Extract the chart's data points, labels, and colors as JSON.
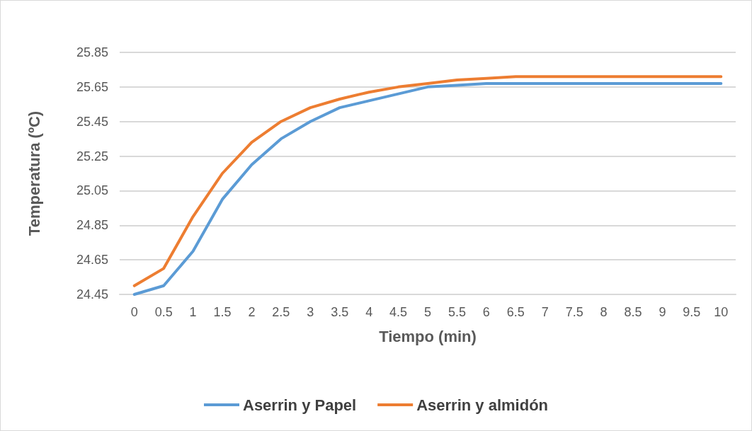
{
  "chart_data": {
    "type": "line",
    "xlabel": "Tiempo (min)",
    "ylabel": "Temperatura (ºC)",
    "categories": [
      "0",
      "0.5",
      "1",
      "1.5",
      "2",
      "2.5",
      "3",
      "3.5",
      "4",
      "4.5",
      "5",
      "5.5",
      "6",
      "6.5",
      "7",
      "7.5",
      "8",
      "8.5",
      "9",
      "9.5",
      "10"
    ],
    "series": [
      {
        "name": "Aserrin y Papel",
        "color": "#5b9bd5",
        "values": [
          24.45,
          24.5,
          24.7,
          25.0,
          25.2,
          25.35,
          25.45,
          25.53,
          25.57,
          25.61,
          25.65,
          25.66,
          25.67,
          25.67,
          25.67,
          25.67,
          25.67,
          25.67,
          25.67,
          25.67,
          25.67
        ]
      },
      {
        "name": "Aserrin y almidón",
        "color": "#ed7d31",
        "values": [
          24.5,
          24.6,
          24.9,
          25.15,
          25.33,
          25.45,
          25.53,
          25.58,
          25.62,
          25.65,
          25.67,
          25.69,
          25.7,
          25.71,
          25.71,
          25.71,
          25.71,
          25.71,
          25.71,
          25.71,
          25.71
        ]
      }
    ],
    "ylim": [
      24.45,
      25.85
    ],
    "yticks": [
      24.45,
      24.65,
      24.85,
      25.05,
      25.25,
      25.45,
      25.65,
      25.85
    ],
    "grid": "y",
    "legend": "bottom",
    "marker": "none",
    "line_style": "solid"
  }
}
